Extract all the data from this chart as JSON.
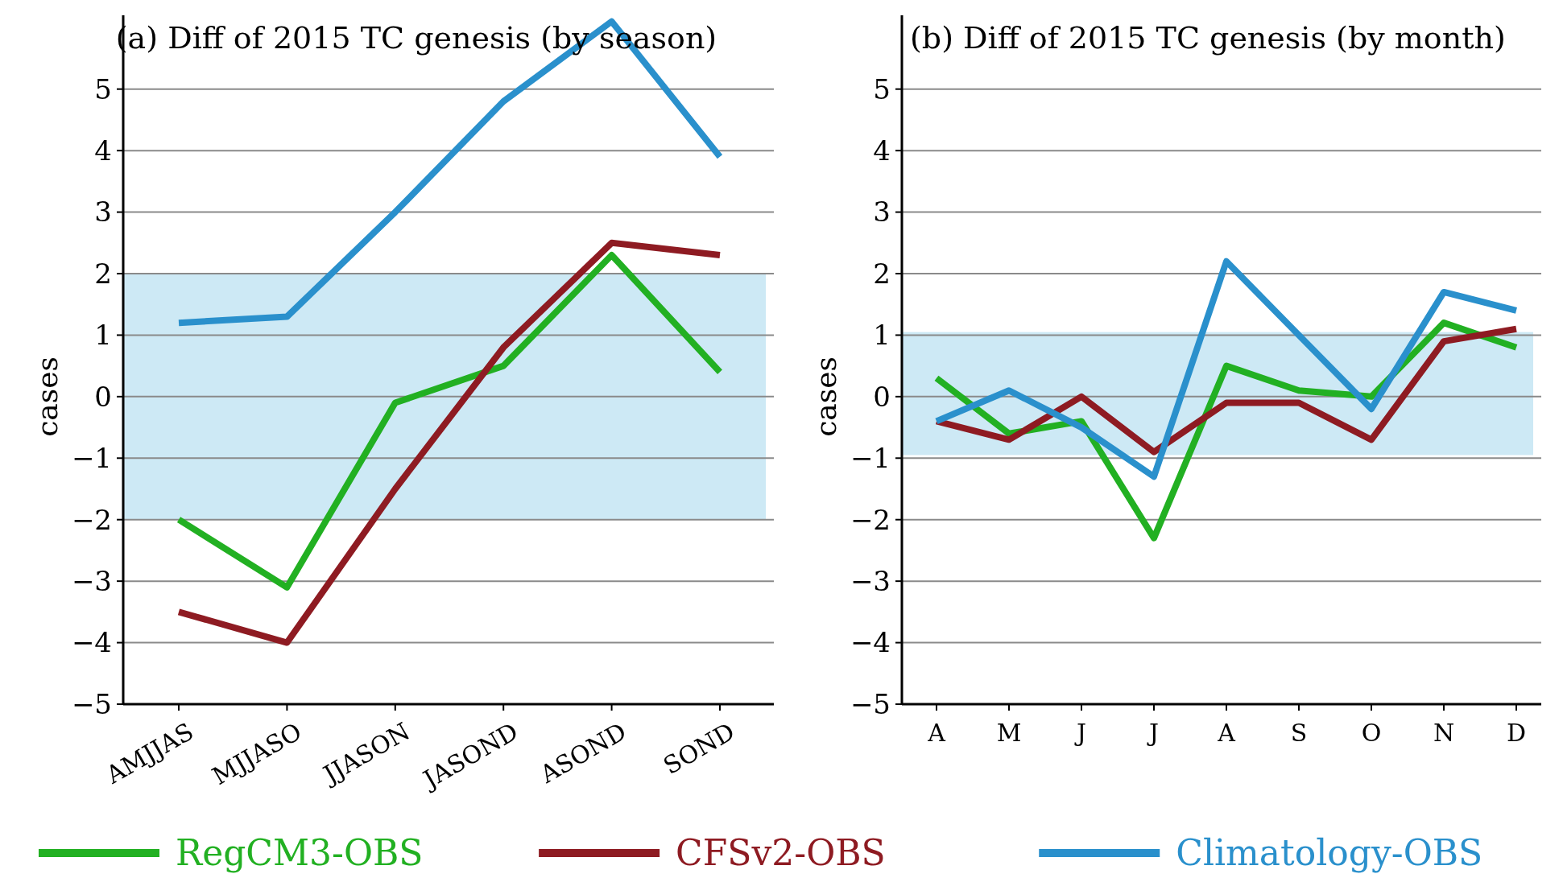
{
  "chart_data": [
    {
      "type": "line",
      "title": "(a) Diff of 2015 TC genesis (by season)",
      "ylabel": "cases",
      "categories": [
        "AMJJAS",
        "MJJASO",
        "JJASON",
        "JASOND",
        "ASOND",
        "SOND"
      ],
      "series": [
        {
          "name": "RegCM3-OBS",
          "color": "#22b022",
          "values": [
            -2.0,
            -3.1,
            -0.1,
            0.5,
            2.3,
            0.4
          ]
        },
        {
          "name": "CFSv2-OBS",
          "color": "#8e1b22",
          "values": [
            -3.5,
            -4.0,
            -1.5,
            0.8,
            2.5,
            2.3
          ]
        },
        {
          "name": "Climatology-OBS",
          "color": "#2a90cc",
          "values": [
            1.2,
            1.3,
            3.0,
            4.8,
            6.1,
            3.9
          ]
        }
      ],
      "ylim": [
        -5,
        6.2
      ],
      "yticks": [
        -5,
        -4,
        -3,
        -2,
        -1,
        0,
        1,
        2,
        3,
        4,
        5
      ],
      "grid": "y",
      "legend": "bottom",
      "bands": [
        {
          "axis": "y",
          "from": -2,
          "to": 2,
          "color": "#cde9f5"
        }
      ]
    },
    {
      "type": "line",
      "title": "(b) Diff of 2015 TC genesis (by month)",
      "ylabel": "cases",
      "categories": [
        "A",
        "M",
        "J",
        "J",
        "A",
        "S",
        "O",
        "N",
        "D"
      ],
      "series": [
        {
          "color": "#22b022",
          "values": [
            0.3,
            -0.6,
            -0.4,
            -2.3,
            0.5,
            0.1,
            0.0,
            1.2,
            0.8
          ]
        },
        {
          "color": "#8e1b22",
          "values": [
            -0.4,
            -0.7,
            0.0,
            -0.9,
            -0.1,
            -0.1,
            -0.7,
            0.9,
            1.1
          ]
        },
        {
          "color": "#2a90cc",
          "values": [
            -0.4,
            0.1,
            -0.5,
            -1.3,
            2.2,
            1.0,
            -0.2,
            1.7,
            1.4
          ]
        }
      ],
      "ylim": [
        -5,
        6.2
      ],
      "yticks": [
        -5,
        -4,
        -3,
        -2,
        -1,
        0,
        1,
        2,
        3,
        4,
        5
      ],
      "grid": "y",
      "bands": [
        {
          "axis": "y",
          "from": -0.95,
          "to": 1.05,
          "color": "#cde9f5"
        }
      ]
    }
  ]
}
